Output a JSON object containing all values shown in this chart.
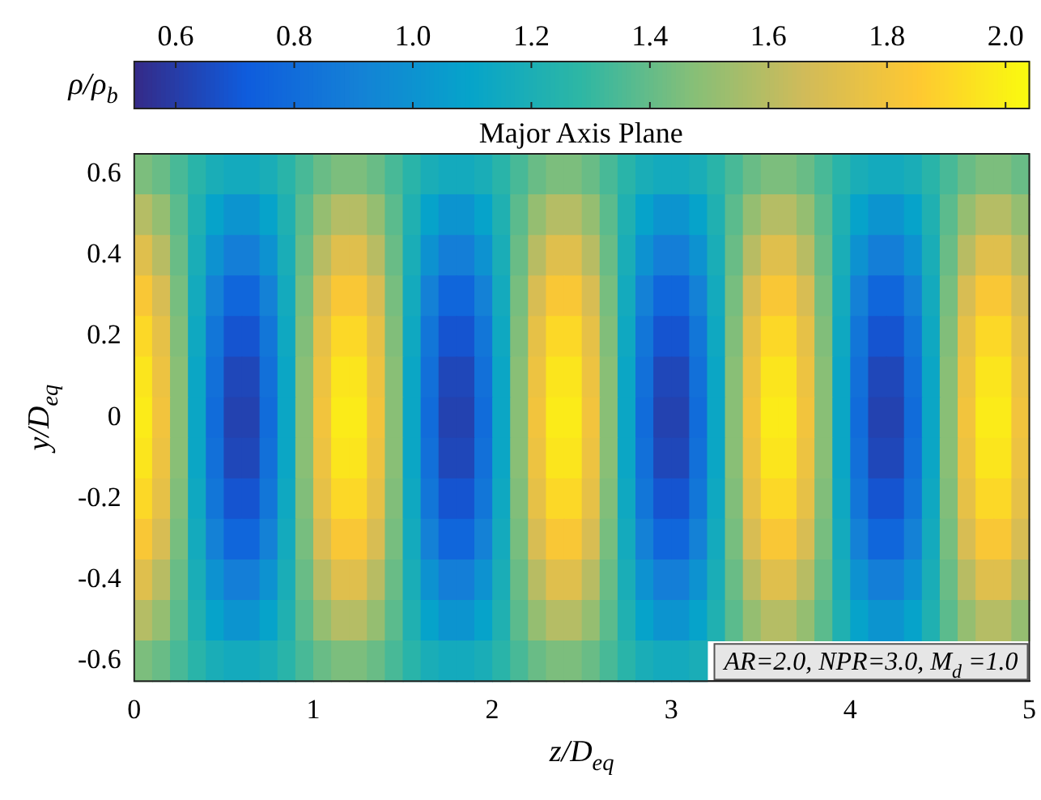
{
  "chart_data": {
    "type": "heatmap",
    "title": "Major Axis Plane",
    "xlabel": "z/D$_{eq}$",
    "ylabel": "y/D$_{eq}$",
    "clabel": "ρ/ρ$_{b}$",
    "annotations": [
      "AR=2.0, NPR=3.0, M$_{d}$ =1.0"
    ],
    "xlim": [
      0,
      5
    ],
    "xticks": [
      0,
      1,
      2,
      3,
      4,
      5
    ],
    "ylim": [
      -0.65,
      0.65
    ],
    "yticks": [
      -0.6,
      -0.4,
      -0.2,
      0,
      0.2,
      0.4,
      0.6
    ],
    "clim": [
      0.53,
      2.04
    ],
    "cticks": [
      {
        "value": 0.6,
        "label": "0.6"
      },
      {
        "value": 0.8,
        "label": "0.8"
      },
      {
        "value": 1.0,
        "label": "1.0"
      },
      {
        "value": 1.2,
        "label": "1.2"
      },
      {
        "value": 1.4,
        "label": "1.4"
      },
      {
        "value": 1.6,
        "label": "1.6"
      },
      {
        "value": 1.8,
        "label": "1.8"
      },
      {
        "value": 2.0,
        "label": "2.0"
      }
    ],
    "x": [
      0.05,
      0.15,
      0.25,
      0.35,
      0.45,
      0.55,
      0.65,
      0.75,
      0.85,
      0.95,
      1.05,
      1.15,
      1.25,
      1.35,
      1.45,
      1.55,
      1.65,
      1.75,
      1.85,
      1.95,
      2.05,
      2.15,
      2.25,
      2.35,
      2.45,
      2.55,
      2.65,
      2.75,
      2.85,
      2.95,
      3.05,
      3.15,
      3.25,
      3.35,
      3.45,
      3.55,
      3.65,
      3.75,
      3.85,
      3.95,
      4.05,
      4.15,
      4.25,
      4.35,
      4.45,
      4.55,
      4.65,
      4.75,
      4.85,
      4.95
    ],
    "y": [
      0.6,
      0.5,
      0.4,
      0.3,
      0.2,
      0.1,
      0,
      -0.1,
      -0.2,
      -0.3,
      -0.4,
      -0.5,
      -0.6
    ],
    "cells": [
      [
        1.45,
        1.41,
        1.34,
        1.26,
        1.19,
        1.16,
        1.16,
        1.19,
        1.26,
        1.34,
        1.41,
        1.45,
        1.45,
        1.41,
        1.34,
        1.26,
        1.19,
        1.16,
        1.16,
        1.19,
        1.26,
        1.34,
        1.41,
        1.45,
        1.45,
        1.41,
        1.34,
        1.26,
        1.19,
        1.16,
        1.16,
        1.19,
        1.26,
        1.34,
        1.41,
        1.45,
        1.45,
        1.41,
        1.34,
        1.26,
        1.19,
        1.16,
        1.16,
        1.19,
        1.26,
        1.34,
        1.41,
        1.45,
        1.45,
        1.41
      ],
      [
        1.59,
        1.51,
        1.38,
        1.22,
        1.09,
        1.01,
        1.01,
        1.09,
        1.22,
        1.38,
        1.51,
        1.59,
        1.59,
        1.51,
        1.38,
        1.22,
        1.09,
        1.01,
        1.01,
        1.09,
        1.22,
        1.38,
        1.51,
        1.59,
        1.59,
        1.51,
        1.38,
        1.22,
        1.09,
        1.01,
        1.01,
        1.09,
        1.22,
        1.38,
        1.51,
        1.59,
        1.59,
        1.51,
        1.38,
        1.22,
        1.09,
        1.01,
        1.01,
        1.09,
        1.22,
        1.38,
        1.51,
        1.59,
        1.59,
        1.51
      ],
      [
        1.72,
        1.6,
        1.41,
        1.19,
        1.0,
        0.89,
        0.89,
        1.0,
        1.19,
        1.41,
        1.6,
        1.72,
        1.72,
        1.6,
        1.41,
        1.19,
        1.0,
        0.89,
        0.89,
        1.0,
        1.19,
        1.41,
        1.6,
        1.72,
        1.72,
        1.6,
        1.41,
        1.19,
        1.0,
        0.89,
        0.89,
        1.0,
        1.19,
        1.41,
        1.6,
        1.72,
        1.72,
        1.6,
        1.41,
        1.19,
        1.0,
        0.89,
        0.89,
        1.0,
        1.19,
        1.41,
        1.6,
        1.72,
        1.72,
        1.6
      ],
      [
        1.83,
        1.69,
        1.44,
        1.16,
        0.91,
        0.77,
        0.77,
        0.91,
        1.16,
        1.44,
        1.69,
        1.83,
        1.83,
        1.69,
        1.44,
        1.16,
        0.91,
        0.77,
        0.77,
        0.91,
        1.16,
        1.44,
        1.69,
        1.83,
        1.83,
        1.69,
        1.44,
        1.16,
        0.91,
        0.77,
        0.77,
        0.91,
        1.16,
        1.44,
        1.69,
        1.83,
        1.83,
        1.69,
        1.44,
        1.16,
        0.91,
        0.77,
        0.77,
        0.91,
        1.16,
        1.44,
        1.69,
        1.83,
        1.83,
        1.69
      ],
      [
        1.91,
        1.75,
        1.46,
        1.14,
        0.85,
        0.69,
        0.69,
        0.85,
        1.14,
        1.46,
        1.75,
        1.91,
        1.91,
        1.75,
        1.46,
        1.14,
        0.85,
        0.69,
        0.69,
        0.85,
        1.14,
        1.46,
        1.75,
        1.91,
        1.91,
        1.75,
        1.46,
        1.14,
        0.85,
        0.69,
        0.69,
        0.85,
        1.14,
        1.46,
        1.75,
        1.91,
        1.91,
        1.75,
        1.46,
        1.14,
        0.85,
        0.69,
        0.69,
        0.85,
        1.14,
        1.46,
        1.75,
        1.91,
        1.91,
        1.75
      ],
      [
        1.96,
        1.78,
        1.48,
        1.12,
        0.82,
        0.64,
        0.64,
        0.82,
        1.12,
        1.48,
        1.78,
        1.96,
        1.96,
        1.78,
        1.48,
        1.12,
        0.82,
        0.64,
        0.64,
        0.82,
        1.12,
        1.48,
        1.78,
        1.96,
        1.96,
        1.78,
        1.48,
        1.12,
        0.82,
        0.64,
        0.64,
        0.82,
        1.12,
        1.48,
        1.78,
        1.96,
        1.96,
        1.78,
        1.48,
        1.12,
        0.82,
        0.64,
        0.64,
        0.82,
        1.12,
        1.48,
        1.78,
        1.96,
        1.96,
        1.78
      ],
      [
        1.98,
        1.8,
        1.48,
        1.12,
        0.8,
        0.62,
        0.62,
        0.8,
        1.12,
        1.48,
        1.8,
        1.98,
        1.98,
        1.8,
        1.48,
        1.12,
        0.8,
        0.62,
        0.62,
        0.8,
        1.12,
        1.48,
        1.8,
        1.98,
        1.98,
        1.8,
        1.48,
        1.12,
        0.8,
        0.62,
        0.62,
        0.8,
        1.12,
        1.48,
        1.8,
        1.98,
        1.98,
        1.8,
        1.48,
        1.12,
        0.8,
        0.62,
        0.62,
        0.8,
        1.12,
        1.48,
        1.8,
        1.98,
        1.98,
        1.8
      ],
      [
        1.96,
        1.78,
        1.48,
        1.12,
        0.82,
        0.64,
        0.64,
        0.82,
        1.12,
        1.48,
        1.78,
        1.96,
        1.96,
        1.78,
        1.48,
        1.12,
        0.82,
        0.64,
        0.64,
        0.82,
        1.12,
        1.48,
        1.78,
        1.96,
        1.96,
        1.78,
        1.48,
        1.12,
        0.82,
        0.64,
        0.64,
        0.82,
        1.12,
        1.48,
        1.78,
        1.96,
        1.96,
        1.78,
        1.48,
        1.12,
        0.82,
        0.64,
        0.64,
        0.82,
        1.12,
        1.48,
        1.78,
        1.96,
        1.96,
        1.78
      ],
      [
        1.91,
        1.75,
        1.46,
        1.14,
        0.85,
        0.69,
        0.69,
        0.85,
        1.14,
        1.46,
        1.75,
        1.91,
        1.91,
        1.75,
        1.46,
        1.14,
        0.85,
        0.69,
        0.69,
        0.85,
        1.14,
        1.46,
        1.75,
        1.91,
        1.91,
        1.75,
        1.46,
        1.14,
        0.85,
        0.69,
        0.69,
        0.85,
        1.14,
        1.46,
        1.75,
        1.91,
        1.91,
        1.75,
        1.46,
        1.14,
        0.85,
        0.69,
        0.69,
        0.85,
        1.14,
        1.46,
        1.75,
        1.91,
        1.91,
        1.75
      ],
      [
        1.83,
        1.69,
        1.44,
        1.16,
        0.91,
        0.77,
        0.77,
        0.91,
        1.16,
        1.44,
        1.69,
        1.83,
        1.83,
        1.69,
        1.44,
        1.16,
        0.91,
        0.77,
        0.77,
        0.91,
        1.16,
        1.44,
        1.69,
        1.83,
        1.83,
        1.69,
        1.44,
        1.16,
        0.91,
        0.77,
        0.77,
        0.91,
        1.16,
        1.44,
        1.69,
        1.83,
        1.83,
        1.69,
        1.44,
        1.16,
        0.91,
        0.77,
        0.77,
        0.91,
        1.16,
        1.44,
        1.69,
        1.83,
        1.83,
        1.69
      ],
      [
        1.72,
        1.6,
        1.41,
        1.19,
        1.0,
        0.89,
        0.89,
        1.0,
        1.19,
        1.41,
        1.6,
        1.72,
        1.72,
        1.6,
        1.41,
        1.19,
        1.0,
        0.89,
        0.89,
        1.0,
        1.19,
        1.41,
        1.6,
        1.72,
        1.72,
        1.6,
        1.41,
        1.19,
        1.0,
        0.89,
        0.89,
        1.0,
        1.19,
        1.41,
        1.6,
        1.72,
        1.72,
        1.6,
        1.41,
        1.19,
        1.0,
        0.89,
        0.89,
        1.0,
        1.19,
        1.41,
        1.6,
        1.72,
        1.72,
        1.6
      ],
      [
        1.59,
        1.51,
        1.38,
        1.22,
        1.09,
        1.01,
        1.01,
        1.09,
        1.22,
        1.38,
        1.51,
        1.59,
        1.59,
        1.51,
        1.38,
        1.22,
        1.09,
        1.01,
        1.01,
        1.09,
        1.22,
        1.38,
        1.51,
        1.59,
        1.59,
        1.51,
        1.38,
        1.22,
        1.09,
        1.01,
        1.01,
        1.09,
        1.22,
        1.38,
        1.51,
        1.59,
        1.59,
        1.51,
        1.38,
        1.22,
        1.09,
        1.01,
        1.01,
        1.09,
        1.22,
        1.38,
        1.51,
        1.59,
        1.59,
        1.51
      ],
      [
        1.45,
        1.41,
        1.34,
        1.26,
        1.19,
        1.16,
        1.16,
        1.19,
        1.26,
        1.34,
        1.41,
        1.45,
        1.45,
        1.41,
        1.34,
        1.26,
        1.19,
        1.16,
        1.16,
        1.19,
        1.26,
        1.34,
        1.41,
        1.45,
        1.45,
        1.41,
        1.34,
        1.26,
        1.19,
        1.16,
        1.16,
        1.19,
        null,
        null,
        null,
        null,
        null,
        null,
        null,
        null,
        null,
        null,
        null,
        null,
        null,
        null,
        null,
        null,
        null,
        null
      ]
    ]
  }
}
